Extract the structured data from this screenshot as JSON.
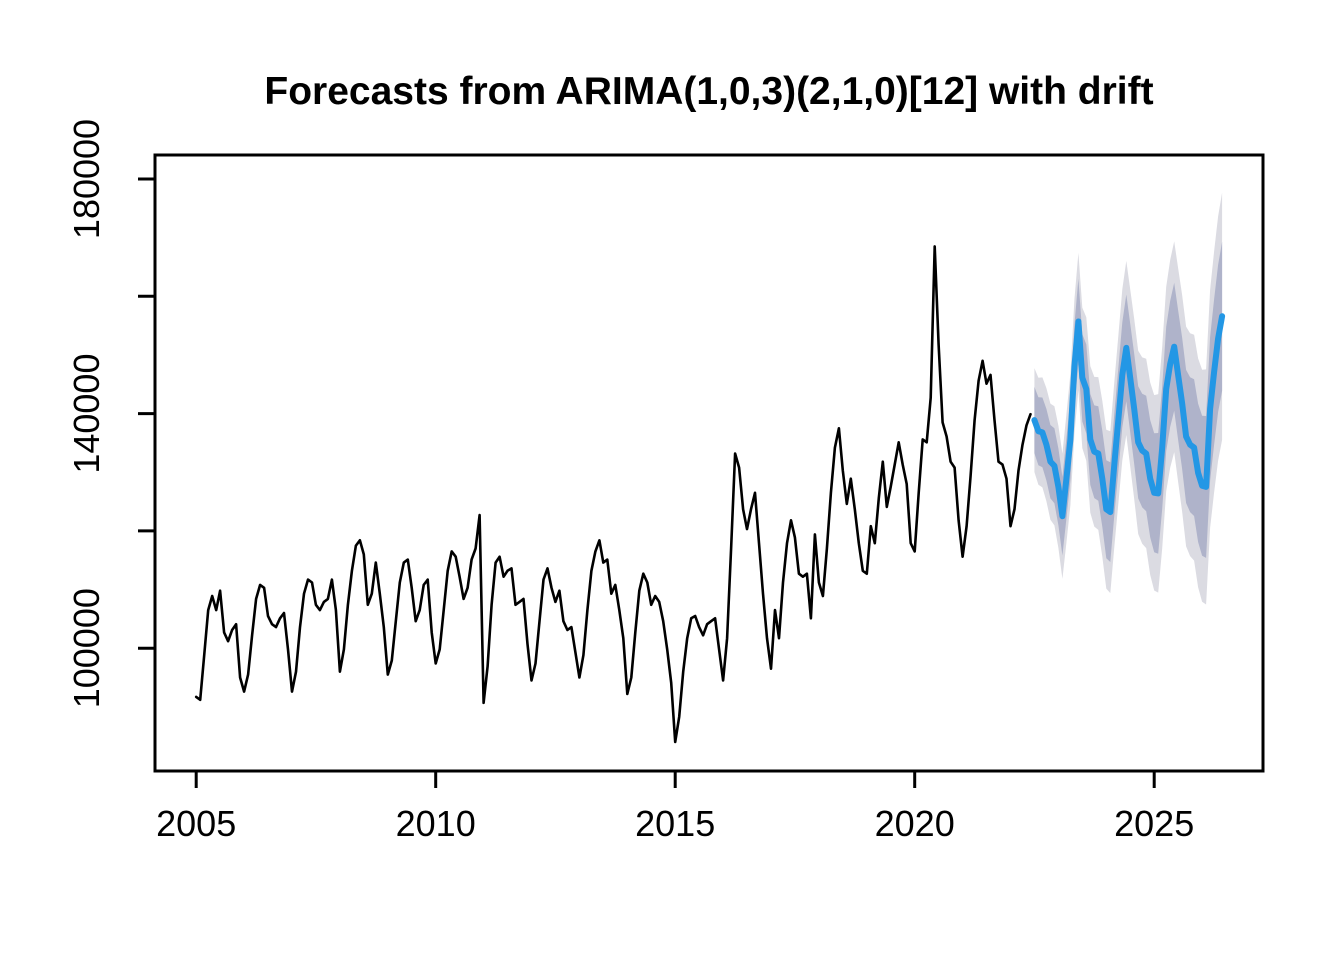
{
  "title": "Forecasts from ARIMA(1,0,3)(2,1,0)[12] with drift",
  "chart_data": {
    "type": "line",
    "title": "Forecasts from ARIMA(1,0,3)(2,1,0)[12] with drift",
    "grid": false,
    "legend": false,
    "x_axis": {
      "ticks": [
        2005,
        2010,
        2015,
        2020,
        2025
      ],
      "range": [
        2004.14,
        2027.27
      ]
    },
    "y_axis": {
      "ticks": [
        100000,
        120000,
        140000,
        160000,
        180000
      ],
      "labeled_ticks": [
        100000,
        140000,
        180000
      ],
      "range": [
        79000,
        184100
      ]
    },
    "colors": {
      "observed": "#000000",
      "forecast_line": "#2397E5",
      "band_80": "#AFB3CA",
      "band_95": "#DBDBE2",
      "axis": "#000000"
    },
    "observed": {
      "name": "observed",
      "start": 2005,
      "frequency": 12,
      "values": [
        91700,
        91200,
        98800,
        106500,
        108900,
        106500,
        109800,
        102700,
        101200,
        103100,
        104100,
        95000,
        92600,
        95500,
        102200,
        108400,
        110800,
        110300,
        105500,
        104100,
        103600,
        105100,
        106000,
        99800,
        92600,
        96000,
        103600,
        109300,
        111700,
        111200,
        107400,
        106500,
        107900,
        108400,
        111700,
        106500,
        96000,
        99800,
        107400,
        113200,
        117500,
        118400,
        116000,
        107400,
        109300,
        114600,
        109300,
        103600,
        95500,
        97900,
        104600,
        111200,
        114600,
        115100,
        110300,
        104600,
        106500,
        110800,
        111700,
        102700,
        97400,
        99800,
        106500,
        113200,
        116500,
        115600,
        112200,
        108400,
        110300,
        115100,
        117000,
        122700,
        90700,
        96900,
        107400,
        114600,
        115600,
        112200,
        113200,
        113600,
        107400,
        107900,
        108400,
        100700,
        94500,
        97400,
        104600,
        111700,
        113600,
        110300,
        107900,
        109800,
        104600,
        103100,
        103600,
        99300,
        95000,
        98800,
        106500,
        113200,
        116500,
        118400,
        114600,
        115100,
        109300,
        110800,
        106500,
        101700,
        92200,
        95000,
        102700,
        109800,
        112700,
        111200,
        107400,
        108900,
        107900,
        104600,
        99800,
        94100,
        84000,
        88300,
        96000,
        101700,
        105100,
        105500,
        103600,
        102200,
        104100,
        104600,
        105100,
        99800,
        94500,
        101700,
        117000,
        133200,
        130800,
        123700,
        120300,
        123700,
        126500,
        117900,
        109300,
        101700,
        96500,
        106500,
        101700,
        111200,
        117900,
        121800,
        118900,
        112700,
        112200,
        112700,
        105100,
        119400,
        111200,
        108900,
        117000,
        126500,
        134200,
        137500,
        130300,
        124600,
        128900,
        123700,
        117900,
        113200,
        112700,
        120800,
        117900,
        125600,
        131800,
        124100,
        127500,
        131300,
        135100,
        131300,
        128000,
        117900,
        116500,
        126500,
        135600,
        135100,
        142700,
        168500,
        151800,
        138500,
        136100,
        131800,
        130800,
        121800,
        115600,
        120800,
        129400,
        138900,
        145600,
        149000,
        145100,
        146600,
        138900,
        131800,
        131300,
        128900,
        120800,
        123700,
        130300,
        134700,
        138000,
        139900
      ]
    },
    "forecast": {
      "name": "point-forecast",
      "start": 2022.5,
      "frequency": 12,
      "mean": [
        138900,
        137000,
        136800,
        134700,
        131800,
        131100,
        127500,
        122500,
        128900,
        135600,
        148000,
        155700,
        146100,
        144200,
        135600,
        133500,
        133200,
        128900,
        123700,
        123200,
        131300,
        138900,
        146600,
        151200,
        146100,
        140800,
        135100,
        133700,
        133200,
        128900,
        126500,
        126400,
        134200,
        144200,
        148500,
        151400,
        146600,
        141800,
        136100,
        134700,
        134200,
        129900,
        127700,
        127500,
        140800,
        147100,
        152800,
        156600
      ],
      "intervals": [
        {
          "level": 80,
          "lo": [
            133250,
            131200,
            130850,
            128600,
            125550,
            124700,
            120950,
            115800,
            122050,
            128600,
            140850,
            148400,
            138650,
            136600,
            127850,
            125600,
            125150,
            120700,
            115350,
            114700,
            122650,
            130100,
            137650,
            142100,
            136850,
            131400,
            125550,
            124000,
            123350,
            118900,
            116350,
            116100,
            123750,
            133600,
            137750,
            140500,
            135550,
            130600,
            124750,
            123200,
            122550,
            118100,
            115750,
            115400,
            128550,
            134700,
            140250,
            143900
          ],
          "hi": [
            144550,
            142800,
            142750,
            140800,
            138050,
            137500,
            134050,
            129200,
            135750,
            142600,
            155150,
            163000,
            153550,
            151800,
            143350,
            141400,
            141250,
            137100,
            132050,
            131700,
            139950,
            147700,
            155550,
            160300,
            155350,
            150200,
            144650,
            143400,
            143050,
            138900,
            136650,
            136700,
            144650,
            154800,
            159250,
            162300,
            157650,
            153000,
            147450,
            146200,
            145850,
            141700,
            139650,
            139600,
            153050,
            159500,
            165350,
            169300
          ]
        },
        {
          "level": 95,
          "lo": [
            130040,
            127880,
            127420,
            125060,
            121900,
            120940,
            117080,
            111820,
            117960,
            124400,
            136540,
            143980,
            134120,
            131960,
            123100,
            120740,
            120180,
            115620,
            110160,
            109400,
            117240,
            124580,
            132020,
            136360,
            131000,
            125440,
            119480,
            117820,
            117060,
            112500,
            109840,
            109480,
            117020,
            126760,
            130800,
            133440,
            128380,
            123320,
            117360,
            115700,
            114940,
            110380,
            107920,
            107460,
            120500,
            126540,
            131980,
            135520
          ],
          "hi": [
            147760,
            146120,
            146180,
            144340,
            141700,
            141260,
            137920,
            133180,
            139840,
            146800,
            159460,
            167420,
            158080,
            156440,
            148100,
            146260,
            146220,
            142180,
            137240,
            137000,
            145360,
            153220,
            161180,
            166040,
            161200,
            156160,
            150720,
            149580,
            149340,
            145300,
            143160,
            143320,
            151380,
            161640,
            166200,
            169360,
            164820,
            160280,
            154840,
            153700,
            153460,
            149420,
            147480,
            147540,
            161100,
            167660,
            173620,
            177680
          ]
        }
      ]
    }
  }
}
